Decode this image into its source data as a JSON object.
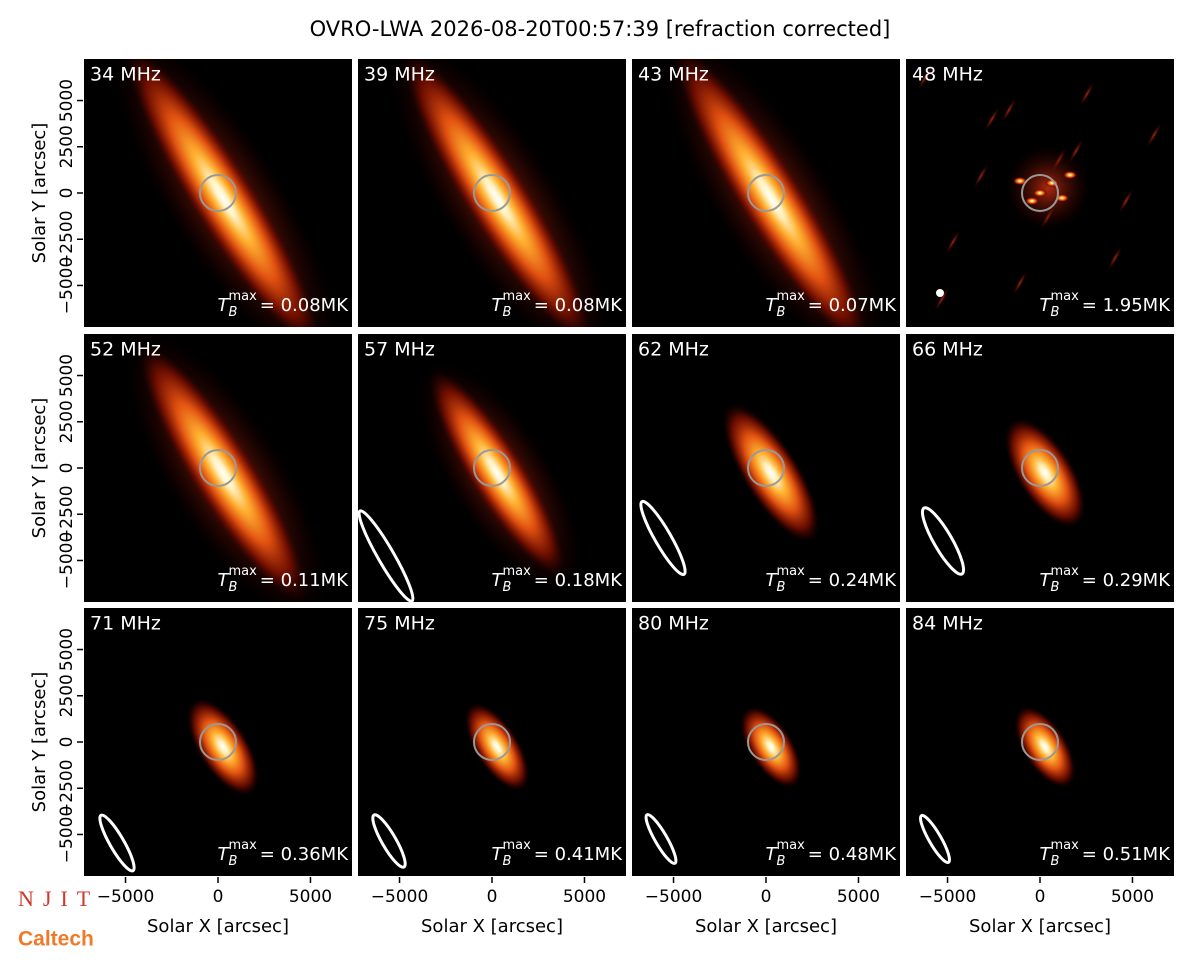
{
  "chart_data": {
    "type": "image",
    "title": "OVRO-LWA 2026-08-20T00:57:39 [refraction corrected]",
    "xlabel": "Solar X [arcsec]",
    "ylabel": "Solar Y [arcsec]",
    "xlim": [
      -7300,
      7300
    ],
    "ylim": [
      -7300,
      7300
    ],
    "xticks": [
      {
        "value": -5000,
        "label": "−5000"
      },
      0,
      5000
    ],
    "yticks": [
      {
        "value": -5000,
        "label": "−5000"
      },
      {
        "value": -2500,
        "label": "−2500"
      },
      0,
      2500,
      5000
    ],
    "tmax_symbol": "T",
    "tmax_sub": "B",
    "tmax_sup": "max",
    "panels": [
      {
        "label": "34 MHz",
        "tmax": "= 0.08MK"
      },
      {
        "label": "39 MHz",
        "tmax": "= 0.08MK"
      },
      {
        "label": "43 MHz",
        "tmax": "= 0.07MK"
      },
      {
        "label": "48 MHz",
        "tmax": "= 1.95MK"
      },
      {
        "label": "52 MHz",
        "tmax": "= 0.11MK"
      },
      {
        "label": "57 MHz",
        "tmax": "= 0.18MK"
      },
      {
        "label": "62 MHz",
        "tmax": "= 0.24MK"
      },
      {
        "label": "66 MHz",
        "tmax": "= 0.29MK"
      },
      {
        "label": "71 MHz",
        "tmax": "= 0.36MK"
      },
      {
        "label": "75 MHz",
        "tmax": "= 0.41MK"
      },
      {
        "label": "80 MHz",
        "tmax": "= 0.48MK"
      },
      {
        "label": "84 MHz",
        "tmax": "= 0.51MK"
      }
    ],
    "logos": [
      "NJIT",
      "Caltech"
    ]
  }
}
